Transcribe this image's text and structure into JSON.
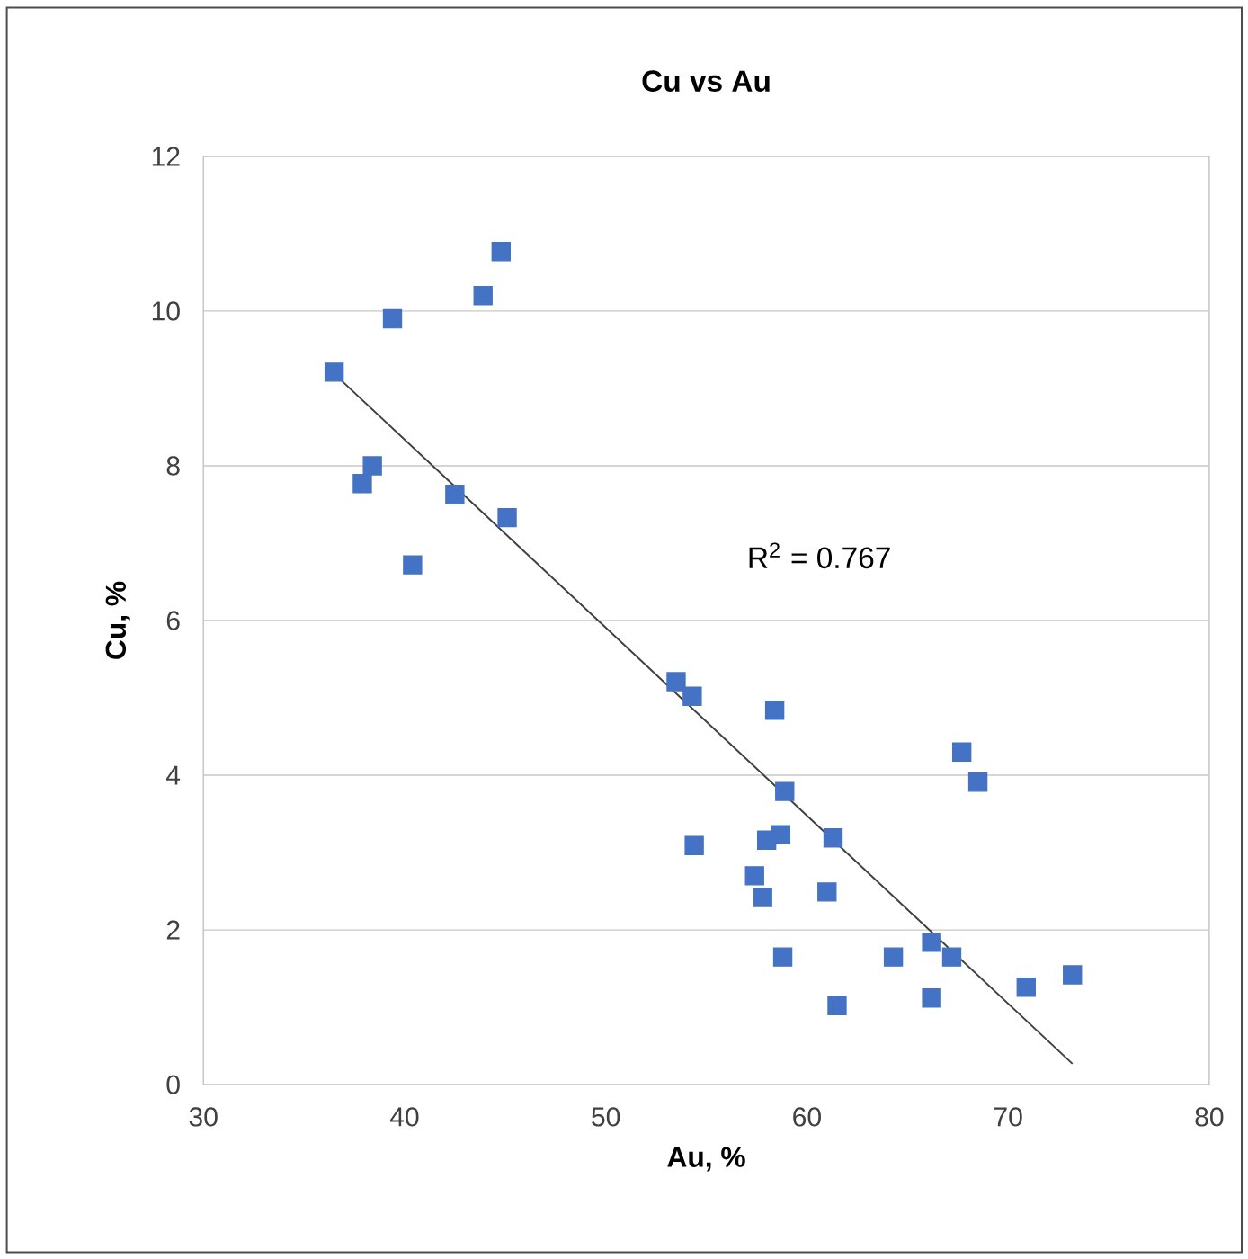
{
  "chart_data": {
    "type": "scatter",
    "title": "Cu vs Au",
    "xlabel": "Au, %",
    "ylabel": "Cu, %",
    "xlim": [
      30,
      80
    ],
    "xticks": [
      30,
      40,
      50,
      60,
      70,
      80
    ],
    "ylim": [
      0,
      12
    ],
    "yticks": [
      0,
      2,
      4,
      6,
      8,
      10,
      12
    ],
    "grid": "y",
    "annotations": [
      "R$^{2}$ = 0.767"
    ],
    "series": [
      {
        "marker": "square",
        "color": "#4472c4",
        "x": [
          36.5,
          39.4,
          43.9,
          44.8,
          37.9,
          38.4,
          42.5,
          45.1,
          40.4,
          53.5,
          54.3,
          58.4,
          58.9,
          54.4,
          58.0,
          58.7,
          61.3,
          57.4,
          57.8,
          61.0,
          58.8,
          64.3,
          66.2,
          67.2,
          61.5,
          66.2,
          67.7,
          68.5,
          70.9,
          73.2
        ],
        "values": [
          9.21,
          9.9,
          10.2,
          10.77,
          7.77,
          8.0,
          7.63,
          7.33,
          6.72,
          5.21,
          5.02,
          4.84,
          3.79,
          3.09,
          3.16,
          3.23,
          3.19,
          2.7,
          2.42,
          2.49,
          1.65,
          1.65,
          1.84,
          1.65,
          1.02,
          1.12,
          4.3,
          3.91,
          1.26,
          1.42
        ]
      },
      {
        "type": "line",
        "marker": "none",
        "color": "#404040",
        "x": [
          36.5,
          73.2
        ],
        "values": [
          9.19,
          0.27
        ]
      }
    ]
  }
}
